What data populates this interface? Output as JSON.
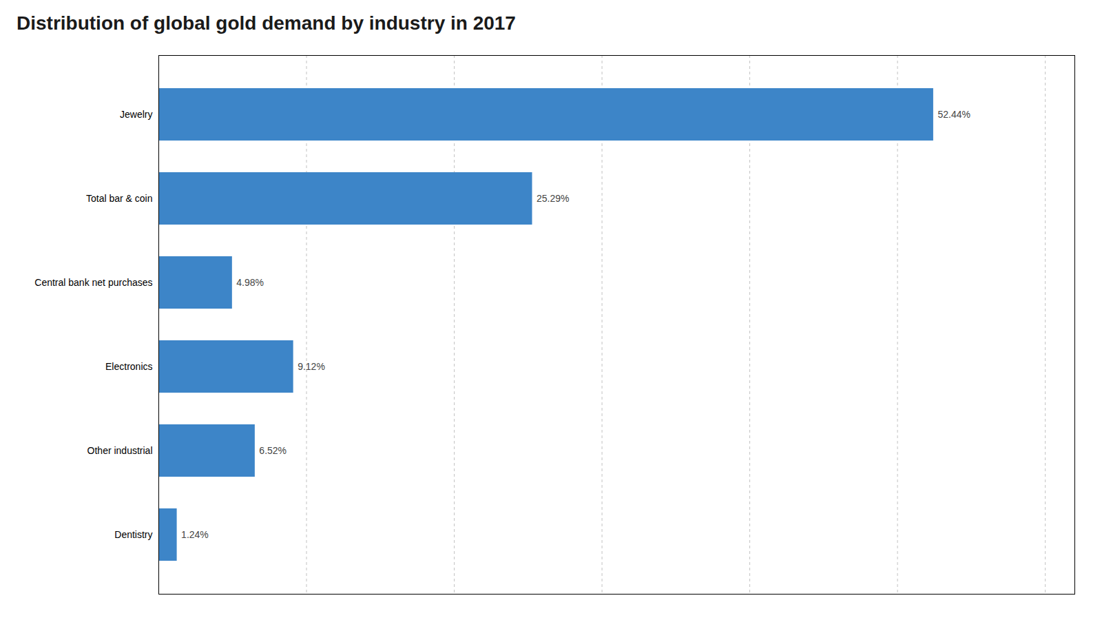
{
  "chart_data": {
    "type": "bar",
    "orientation": "horizontal",
    "title": "Distribution of global gold demand by industry in 2017",
    "categories": [
      "Jewelry",
      "Total bar & coin",
      "Central bank net purchases",
      "Electronics",
      "Other industrial",
      "Dentistry"
    ],
    "values": [
      52.44,
      25.29,
      4.98,
      9.12,
      6.52,
      1.24
    ],
    "value_labels": [
      "52.44%",
      "25.29%",
      "4.98%",
      "9.12%",
      "6.52%",
      "1.24%"
    ],
    "color": "#3d85c8",
    "xlim": [
      0,
      62
    ],
    "xticks": [
      10,
      20,
      30,
      40,
      50,
      60
    ],
    "grid": true,
    "data_labels": true,
    "tick_labels": "y"
  }
}
